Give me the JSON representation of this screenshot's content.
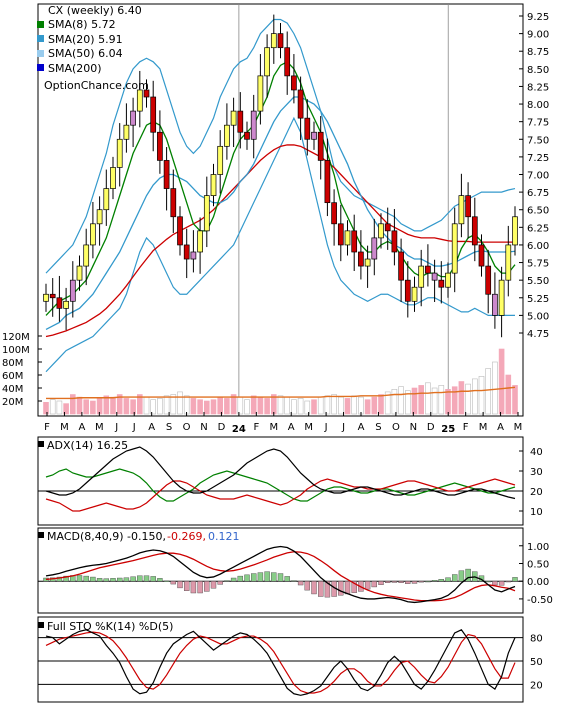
{
  "chart_data": {
    "type": "stock-chart",
    "colors": {
      "up": "#ffff66",
      "down": "#cc0000",
      "neutral": "#cc88cc",
      "sma8": "#008000",
      "sma20": "#3399cc",
      "sma50": "#cc0000",
      "sma200": "#0000cc",
      "volume": "#f4a8b8",
      "volume_avg": "#e07020",
      "adx": "#000000",
      "plus_di": "#008000",
      "minus_di": "#cc0000",
      "macd": "#000000",
      "signal": "#cc0000",
      "hist_up": "#88cc88",
      "hist_down": "#dd99aa",
      "sto_k": "#000000",
      "sto_d": "#cc0000"
    },
    "legend": {
      "title": "CX (weekly) 6.40",
      "items": [
        {
          "label": "SMA(8) 5.72",
          "color": "#008000"
        },
        {
          "label": "SMA(20) 5.91",
          "color": "#3399cc"
        },
        {
          "label": "SMA(50) 6.04",
          "color": "#99ccee"
        },
        {
          "label": "SMA(200)",
          "color": "#0000cc"
        }
      ],
      "source": "OptionChance.com"
    },
    "price_axis": {
      "ticks": [
        "9.25",
        "9.00",
        "8.75",
        "8.50",
        "8.25",
        "8.00",
        "7.75",
        "7.50",
        "7.25",
        "7.00",
        "6.75",
        "6.50",
        "6.25",
        "6.00",
        "5.75",
        "5.50",
        "5.25",
        "5.00",
        "4.75"
      ],
      "min": 4.75,
      "max": 9.25
    },
    "volume_axis": {
      "ticks": [
        "120M",
        "100M",
        "80M",
        "60M",
        "40M",
        "20M"
      ],
      "max": 120
    },
    "x_axis": {
      "labels": [
        "F",
        "M",
        "A",
        "M",
        "J",
        "J",
        "A",
        "S",
        "O",
        "N",
        "D",
        "24",
        "F",
        "M",
        "A",
        "M",
        "J",
        "J",
        "A",
        "S",
        "O",
        "N",
        "D",
        "25",
        "F",
        "M",
        "A",
        "M"
      ],
      "bold": [
        "24",
        "25"
      ]
    },
    "close": [
      5.3,
      5.25,
      5.1,
      5.2,
      5.5,
      5.7,
      6.0,
      6.3,
      6.5,
      6.8,
      7.1,
      7.5,
      7.7,
      7.9,
      8.2,
      8.1,
      7.6,
      7.2,
      6.8,
      6.4,
      6.0,
      5.8,
      5.9,
      6.2,
      6.7,
      7.0,
      7.4,
      7.7,
      7.9,
      7.6,
      7.5,
      7.9,
      8.4,
      8.8,
      9.0,
      8.8,
      8.4,
      8.2,
      7.8,
      7.5,
      7.6,
      7.2,
      6.6,
      6.3,
      6.0,
      6.2,
      5.9,
      5.7,
      5.8,
      6.1,
      6.3,
      6.2,
      5.9,
      5.5,
      5.2,
      5.4,
      5.7,
      5.6,
      5.5,
      5.4,
      5.6,
      6.3,
      6.7,
      6.4,
      6.0,
      5.7,
      5.3,
      5.0,
      5.5,
      6.0,
      6.4
    ],
    "volume": [
      18,
      22,
      20,
      16,
      30,
      26,
      22,
      20,
      24,
      28,
      26,
      30,
      24,
      22,
      30,
      26,
      22,
      24,
      28,
      30,
      34,
      28,
      24,
      22,
      20,
      22,
      26,
      24,
      30,
      26,
      22,
      28,
      26,
      24,
      30,
      28,
      26,
      22,
      24,
      20,
      22,
      26,
      28,
      30,
      26,
      24,
      28,
      26,
      22,
      26,
      30,
      34,
      38,
      42,
      36,
      40,
      44,
      48,
      40,
      44,
      38,
      42,
      50,
      46,
      54,
      58,
      70,
      80,
      100,
      60,
      44
    ],
    "volume_avg": [
      24,
      24,
      24,
      24,
      24,
      25,
      25,
      25,
      25,
      25,
      25,
      26,
      26,
      26,
      26,
      26,
      26,
      26,
      26,
      26,
      26,
      26,
      26,
      26,
      26,
      26,
      26,
      26,
      26,
      26,
      26,
      26,
      26,
      26,
      26,
      26,
      26,
      26,
      26,
      26,
      26,
      26,
      27,
      27,
      27,
      27,
      27,
      28,
      28,
      28,
      28,
      29,
      30,
      30,
      31,
      31,
      32,
      32,
      33,
      33,
      34,
      34,
      35,
      35,
      36,
      36,
      37,
      38,
      39,
      40,
      41
    ],
    "sma8_series": [
      5.0,
      5.1,
      5.2,
      5.25,
      5.3,
      5.4,
      5.5,
      5.7,
      5.9,
      6.1,
      6.4,
      6.7,
      7.0,
      7.3,
      7.5,
      7.7,
      7.75,
      7.7,
      7.5,
      7.2,
      6.9,
      6.6,
      6.3,
      6.2,
      6.2,
      6.4,
      6.7,
      7.0,
      7.3,
      7.5,
      7.6,
      7.7,
      7.9,
      8.1,
      8.4,
      8.55,
      8.6,
      8.5,
      8.3,
      8.0,
      7.8,
      7.6,
      7.3,
      7.0,
      6.6,
      6.4,
      6.2,
      6.0,
      5.9,
      5.9,
      6.0,
      6.05,
      6.0,
      5.85,
      5.7,
      5.6,
      5.55,
      5.6,
      5.6,
      5.55,
      5.55,
      5.7,
      5.95,
      6.1,
      6.15,
      6.05,
      5.9,
      5.7,
      5.6,
      5.6,
      5.72
    ],
    "sma20_series": [
      4.8,
      4.85,
      4.9,
      5.0,
      5.05,
      5.1,
      5.2,
      5.3,
      5.45,
      5.6,
      5.75,
      5.9,
      6.1,
      6.3,
      6.5,
      6.7,
      6.85,
      6.95,
      7.0,
      7.0,
      6.95,
      6.9,
      6.8,
      6.7,
      6.65,
      6.6,
      6.6,
      6.65,
      6.75,
      6.9,
      7.0,
      7.15,
      7.35,
      7.55,
      7.75,
      7.9,
      8.0,
      8.1,
      8.1,
      8.05,
      8.0,
      7.9,
      7.75,
      7.55,
      7.35,
      7.15,
      6.9,
      6.7,
      6.5,
      6.35,
      6.2,
      6.1,
      6.0,
      5.95,
      5.85,
      5.8,
      5.8,
      5.75,
      5.7,
      5.7,
      5.72,
      5.75,
      5.8,
      5.85,
      5.9,
      5.92,
      5.9,
      5.9,
      5.9,
      5.9,
      5.91
    ],
    "upper_band": [
      5.6,
      5.7,
      5.8,
      5.9,
      6.0,
      6.2,
      6.4,
      6.7,
      7.0,
      7.3,
      7.7,
      8.0,
      8.3,
      8.5,
      8.6,
      8.65,
      8.6,
      8.5,
      8.2,
      7.9,
      7.6,
      7.4,
      7.3,
      7.4,
      7.6,
      7.8,
      8.1,
      8.3,
      8.5,
      8.6,
      8.65,
      8.8,
      9.0,
      9.1,
      9.2,
      9.2,
      9.15,
      9.0,
      8.8,
      8.5,
      8.2,
      7.9,
      7.5,
      7.1,
      6.9,
      6.8,
      6.7,
      6.65,
      6.6,
      6.55,
      6.5,
      6.45,
      6.4,
      6.3,
      6.25,
      6.2,
      6.2,
      6.25,
      6.3,
      6.35,
      6.45,
      6.55,
      6.6,
      6.65,
      6.7,
      6.75,
      6.75,
      6.75,
      6.75,
      6.78,
      6.8
    ],
    "lower_band": [
      4.2,
      4.3,
      4.4,
      4.5,
      4.55,
      4.6,
      4.65,
      4.7,
      4.8,
      4.9,
      5.0,
      5.1,
      5.3,
      5.6,
      5.9,
      6.1,
      6.0,
      5.8,
      5.6,
      5.4,
      5.3,
      5.3,
      5.4,
      5.5,
      5.6,
      5.7,
      5.8,
      5.9,
      6.0,
      6.2,
      6.4,
      6.6,
      6.8,
      7.0,
      7.2,
      7.4,
      7.6,
      7.8,
      7.6,
      7.2,
      6.8,
      6.4,
      6.0,
      5.7,
      5.5,
      5.4,
      5.3,
      5.25,
      5.2,
      5.25,
      5.3,
      5.3,
      5.25,
      5.2,
      5.15,
      5.15,
      5.2,
      5.25,
      5.25,
      5.2,
      5.15,
      5.1,
      5.05,
      5.05,
      5.1,
      5.05,
      5.0,
      5.0,
      5.0,
      5.0,
      5.0
    ],
    "sma50_series": [
      4.7,
      4.72,
      4.75,
      4.78,
      4.82,
      4.86,
      4.9,
      4.96,
      5.02,
      5.1,
      5.2,
      5.3,
      5.42,
      5.55,
      5.68,
      5.8,
      5.92,
      6.0,
      6.08,
      6.15,
      6.2,
      6.25,
      6.3,
      6.35,
      6.42,
      6.5,
      6.6,
      6.7,
      6.8,
      6.9,
      7.0,
      7.1,
      7.2,
      7.28,
      7.35,
      7.4,
      7.42,
      7.42,
      7.4,
      7.35,
      7.3,
      7.25,
      7.18,
      7.1,
      7.0,
      6.9,
      6.8,
      6.7,
      6.6,
      6.5,
      6.4,
      6.3,
      6.25,
      6.2,
      6.15,
      6.12,
      6.1,
      6.1,
      6.1,
      6.08,
      6.06,
      6.05,
      6.05,
      6.05,
      6.04,
      6.04,
      6.04,
      6.04,
      6.04,
      6.04,
      6.04
    ],
    "adx": {
      "label": "ADX(14) 16.25",
      "ticks": [
        "40",
        "30",
        "20",
        "10"
      ],
      "adx": [
        20,
        19,
        18,
        18,
        19,
        21,
        24,
        27,
        30,
        33,
        36,
        38,
        40,
        41,
        42,
        40,
        37,
        33,
        29,
        25,
        22,
        20,
        19,
        19,
        20,
        22,
        24,
        26,
        28,
        31,
        34,
        36,
        38,
        40,
        41,
        40,
        37,
        33,
        29,
        26,
        23,
        21,
        20,
        19,
        19,
        20,
        21,
        22,
        22,
        21,
        20,
        19,
        18,
        18,
        19,
        20,
        21,
        21,
        20,
        19,
        18,
        18,
        19,
        20,
        21,
        21,
        20,
        19,
        18,
        17,
        16.25
      ],
      "plus_di": [
        27,
        28,
        30,
        31,
        29,
        28,
        27,
        27,
        28,
        29,
        30,
        31,
        30,
        29,
        27,
        24,
        20,
        17,
        15,
        15,
        17,
        19,
        21,
        24,
        26,
        28,
        29,
        30,
        29,
        28,
        27,
        26,
        25,
        24,
        22,
        20,
        18,
        16,
        15,
        15,
        17,
        19,
        21,
        22,
        22,
        21,
        20,
        19,
        19,
        20,
        21,
        21,
        20,
        19,
        18,
        18,
        19,
        20,
        21,
        22,
        23,
        24,
        23,
        22,
        21,
        20,
        19,
        19,
        20,
        21,
        22
      ],
      "minus_di": [
        16,
        15,
        14,
        12,
        10,
        10,
        11,
        12,
        13,
        14,
        13,
        12,
        11,
        11,
        12,
        14,
        17,
        20,
        23,
        25,
        25,
        24,
        22,
        20,
        18,
        17,
        16,
        16,
        16,
        17,
        18,
        17,
        16,
        15,
        14,
        13,
        14,
        16,
        18,
        21,
        23,
        25,
        26,
        25,
        24,
        23,
        22,
        22,
        21,
        21,
        21,
        22,
        23,
        24,
        25,
        25,
        24,
        23,
        22,
        21,
        20,
        20,
        21,
        22,
        23,
        24,
        25,
        26,
        25,
        24,
        23
      ]
    },
    "macd": {
      "label": "MACD(8,40,9) -0.150,",
      "label2": "-0.269,",
      "label3": "0.121",
      "ticks": [
        "1.00",
        "0.50",
        "0.00",
        "-0.50"
      ],
      "macd": [
        0.15,
        0.18,
        0.22,
        0.28,
        0.33,
        0.38,
        0.42,
        0.45,
        0.47,
        0.5,
        0.55,
        0.6,
        0.65,
        0.72,
        0.8,
        0.85,
        0.88,
        0.86,
        0.8,
        0.7,
        0.55,
        0.4,
        0.25,
        0.15,
        0.1,
        0.12,
        0.2,
        0.3,
        0.4,
        0.5,
        0.6,
        0.7,
        0.8,
        0.9,
        0.95,
        0.98,
        0.95,
        0.85,
        0.7,
        0.5,
        0.3,
        0.1,
        -0.05,
        -0.18,
        -0.28,
        -0.35,
        -0.42,
        -0.48,
        -0.5,
        -0.5,
        -0.48,
        -0.46,
        -0.48,
        -0.52,
        -0.58,
        -0.6,
        -0.58,
        -0.55,
        -0.52,
        -0.48,
        -0.4,
        -0.25,
        -0.05,
        0.1,
        0.12,
        0.05,
        -0.1,
        -0.25,
        -0.3,
        -0.22,
        -0.15
      ],
      "signal": [
        0.05,
        0.07,
        0.09,
        0.12,
        0.15,
        0.2,
        0.26,
        0.32,
        0.38,
        0.42,
        0.46,
        0.5,
        0.54,
        0.58,
        0.63,
        0.68,
        0.73,
        0.77,
        0.79,
        0.79,
        0.76,
        0.7,
        0.62,
        0.52,
        0.42,
        0.34,
        0.3,
        0.28,
        0.3,
        0.34,
        0.4,
        0.46,
        0.53,
        0.6,
        0.68,
        0.74,
        0.8,
        0.83,
        0.82,
        0.78,
        0.7,
        0.58,
        0.45,
        0.3,
        0.16,
        0.05,
        -0.06,
        -0.16,
        -0.25,
        -0.32,
        -0.37,
        -0.41,
        -0.44,
        -0.47,
        -0.5,
        -0.53,
        -0.55,
        -0.55,
        -0.55,
        -0.54,
        -0.51,
        -0.46,
        -0.38,
        -0.28,
        -0.18,
        -0.12,
        -0.1,
        -0.13,
        -0.17,
        -0.2,
        -0.27
      ]
    },
    "sto": {
      "label": "Full STO %K(14) %D(5)",
      "ticks": [
        "80",
        "50",
        "20"
      ],
      "k": [
        82,
        80,
        72,
        78,
        84,
        88,
        90,
        86,
        82,
        70,
        60,
        48,
        30,
        14,
        8,
        10,
        22,
        42,
        60,
        72,
        78,
        84,
        88,
        80,
        72,
        64,
        70,
        76,
        82,
        86,
        84,
        78,
        70,
        60,
        45,
        30,
        15,
        8,
        6,
        8,
        12,
        18,
        30,
        42,
        50,
        40,
        26,
        15,
        12,
        18,
        32,
        48,
        56,
        48,
        34,
        20,
        14,
        24,
        38,
        54,
        70,
        86,
        90,
        78,
        60,
        40,
        20,
        14,
        30,
        60,
        80
      ],
      "d": [
        70,
        74,
        78,
        80,
        82,
        84,
        86,
        87,
        86,
        82,
        76,
        66,
        54,
        40,
        26,
        16,
        14,
        20,
        32,
        46,
        60,
        70,
        78,
        82,
        80,
        76,
        72,
        72,
        76,
        80,
        82,
        82,
        78,
        72,
        62,
        48,
        34,
        20,
        12,
        9,
        9,
        11,
        16,
        24,
        34,
        40,
        40,
        34,
        24,
        18,
        18,
        26,
        38,
        48,
        50,
        42,
        32,
        24,
        22,
        30,
        42,
        58,
        74,
        84,
        82,
        72,
        56,
        40,
        28,
        28,
        48
      ]
    }
  }
}
